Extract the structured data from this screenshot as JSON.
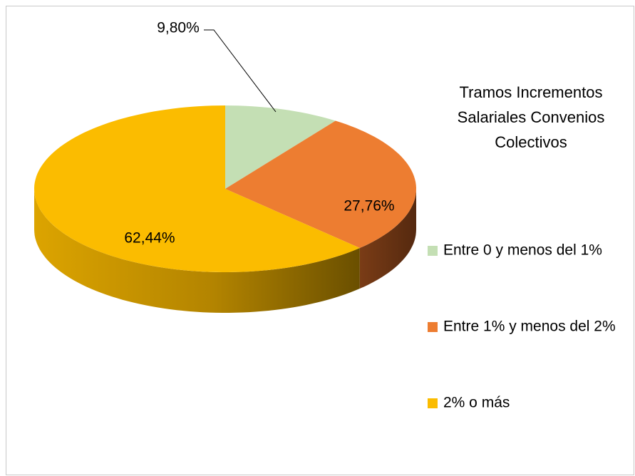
{
  "chart_data": {
    "type": "pie",
    "title": "Tramos Incrementos Salariales Convenios Colectivos",
    "categories": [
      "Entre 0 y menos del 1%",
      "Entre 1% y menos del 2%",
      "2% o más"
    ],
    "values": [
      9.8,
      27.76,
      62.44
    ],
    "value_labels": [
      "9,80%",
      "27,76%",
      "62,44%"
    ],
    "colors": [
      "#c4dfb4",
      "#ed7d31",
      "#fbbc00"
    ],
    "legend": "right"
  }
}
